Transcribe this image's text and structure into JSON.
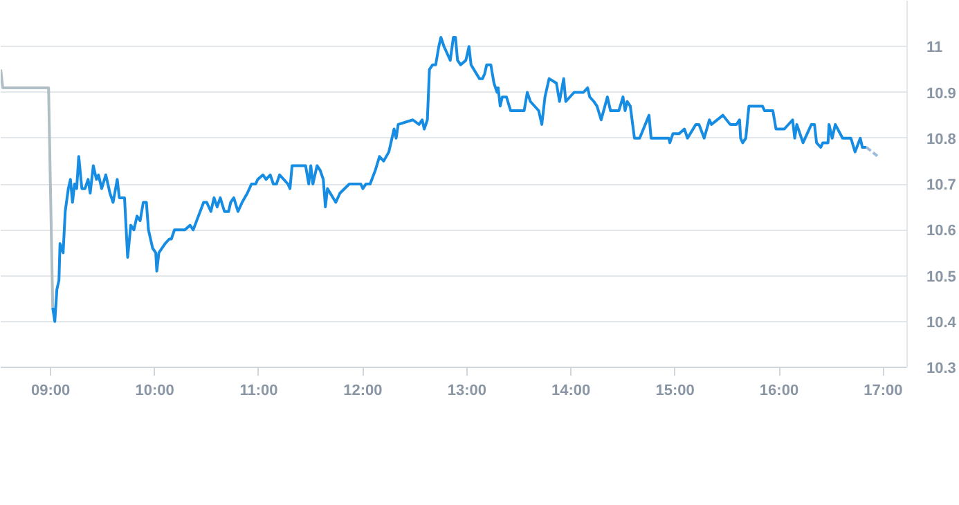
{
  "chart_data": {
    "type": "line",
    "xlim": [
      8.52,
      17.23
    ],
    "ylim": [
      10.3,
      11.1
    ],
    "xticks": [
      {
        "value": 9,
        "label": "09:00"
      },
      {
        "value": 10,
        "label": "10:00"
      },
      {
        "value": 11,
        "label": "11:00"
      },
      {
        "value": 12,
        "label": "12:00"
      },
      {
        "value": 13,
        "label": "13:00"
      },
      {
        "value": 14,
        "label": "14:00"
      },
      {
        "value": 15,
        "label": "15:00"
      },
      {
        "value": 16,
        "label": "16:00"
      },
      {
        "value": 17,
        "label": "17:00"
      }
    ],
    "yticks": [
      10.3,
      10.4,
      10.5,
      10.6,
      10.7,
      10.8,
      10.9,
      {
        "value": 11,
        "label": "11"
      }
    ],
    "grid": "y",
    "series": [
      {
        "color": "#b0bec5",
        "x": [
          8.52,
          8.54,
          8.98,
          9.02
        ],
        "values": [
          10.95,
          10.91,
          10.91,
          10.43
        ]
      },
      {
        "color": "#168de2",
        "x": [
          9.02,
          9.04,
          9.06,
          9.08,
          9.09,
          9.12,
          9.14,
          9.17,
          9.19,
          9.21,
          9.23,
          9.25,
          9.27,
          9.3,
          9.33,
          9.36,
          9.38,
          9.41,
          9.44,
          9.46,
          9.49,
          9.53,
          9.57,
          9.6,
          9.64,
          9.66,
          9.71,
          9.74,
          9.77,
          9.8,
          9.83,
          9.86,
          9.89,
          9.92,
          9.94,
          9.98,
          10.01,
          10.02,
          10.04,
          10.1,
          10.14,
          10.16,
          10.19,
          10.29,
          10.34,
          10.37,
          10.42,
          10.47,
          10.5,
          10.54,
          10.57,
          10.6,
          10.63,
          10.67,
          10.71,
          10.73,
          10.76,
          10.8,
          10.84,
          10.89,
          10.93,
          10.97,
          10.99,
          11.04,
          11.07,
          11.11,
          11.14,
          11.17,
          11.2,
          11.28,
          11.3,
          11.32,
          11.45,
          11.48,
          11.5,
          11.52,
          11.56,
          11.59,
          11.62,
          11.64,
          11.66,
          11.74,
          11.78,
          11.87,
          11.98,
          12.0,
          12.03,
          12.07,
          12.12,
          12.16,
          12.2,
          12.25,
          12.3,
          12.32,
          12.34,
          12.48,
          12.54,
          12.57,
          12.59,
          12.62,
          12.64,
          12.67,
          12.7,
          12.73,
          12.75,
          12.78,
          12.84,
          12.87,
          12.89,
          12.91,
          12.94,
          12.99,
          13.02,
          13.04,
          13.12,
          13.15,
          13.17,
          13.19,
          13.23,
          13.26,
          13.29,
          13.3,
          13.32,
          13.34,
          13.38,
          13.42,
          13.55,
          13.58,
          13.61,
          13.69,
          13.72,
          13.75,
          13.79,
          13.86,
          13.89,
          13.93,
          13.95,
          14.03,
          14.12,
          14.16,
          14.18,
          14.22,
          14.25,
          14.29,
          14.35,
          14.38,
          14.46,
          14.5,
          14.52,
          14.54,
          14.57,
          14.61,
          14.66,
          14.75,
          14.77,
          14.94,
          14.95,
          14.98,
          15.04,
          15.09,
          15.12,
          15.2,
          15.23,
          15.28,
          15.33,
          15.35,
          15.46,
          15.53,
          15.59,
          15.62,
          15.63,
          15.65,
          15.68,
          15.71,
          15.84,
          15.86,
          15.94,
          15.97,
          16.05,
          16.13,
          16.15,
          16.17,
          16.23,
          16.31,
          16.34,
          16.36,
          16.4,
          16.42,
          16.47,
          16.48,
          16.51,
          16.54,
          16.61,
          16.69,
          16.73,
          16.78,
          16.8,
          16.84
        ],
        "values": [
          10.43,
          10.4,
          10.47,
          10.49,
          10.57,
          10.55,
          10.64,
          10.69,
          10.71,
          10.66,
          10.7,
          10.69,
          10.76,
          10.69,
          10.69,
          10.71,
          10.68,
          10.74,
          10.71,
          10.72,
          10.69,
          10.72,
          10.68,
          10.66,
          10.71,
          10.67,
          10.67,
          10.54,
          10.61,
          10.6,
          10.63,
          10.62,
          10.66,
          10.66,
          10.6,
          10.56,
          10.55,
          10.51,
          10.55,
          10.57,
          10.58,
          10.58,
          10.6,
          10.6,
          10.61,
          10.6,
          10.63,
          10.66,
          10.66,
          10.64,
          10.67,
          10.65,
          10.67,
          10.64,
          10.64,
          10.66,
          10.67,
          10.64,
          10.66,
          10.68,
          10.7,
          10.7,
          10.71,
          10.72,
          10.71,
          10.72,
          10.7,
          10.7,
          10.72,
          10.7,
          10.69,
          10.74,
          10.74,
          10.7,
          10.74,
          10.7,
          10.74,
          10.73,
          10.71,
          10.65,
          10.69,
          10.66,
          10.68,
          10.7,
          10.7,
          10.69,
          10.7,
          10.7,
          10.73,
          10.76,
          10.75,
          10.77,
          10.82,
          10.8,
          10.83,
          10.84,
          10.83,
          10.84,
          10.82,
          10.84,
          10.95,
          10.96,
          10.96,
          11.0,
          11.02,
          11.0,
          10.97,
          11.02,
          11.02,
          10.97,
          10.96,
          10.97,
          11.0,
          10.96,
          10.93,
          10.93,
          10.94,
          10.96,
          10.96,
          10.92,
          10.9,
          10.91,
          10.87,
          10.89,
          10.89,
          10.86,
          10.86,
          10.9,
          10.88,
          10.86,
          10.83,
          10.89,
          10.93,
          10.92,
          10.88,
          10.93,
          10.88,
          10.9,
          10.9,
          10.91,
          10.89,
          10.88,
          10.87,
          10.84,
          10.89,
          10.86,
          10.86,
          10.89,
          10.86,
          10.88,
          10.87,
          10.8,
          10.8,
          10.85,
          10.8,
          10.8,
          10.79,
          10.81,
          10.81,
          10.82,
          10.8,
          10.83,
          10.83,
          10.8,
          10.84,
          10.83,
          10.85,
          10.83,
          10.83,
          10.84,
          10.8,
          10.79,
          10.8,
          10.87,
          10.87,
          10.86,
          10.86,
          10.82,
          10.82,
          10.84,
          10.8,
          10.83,
          10.79,
          10.83,
          10.83,
          10.79,
          10.78,
          10.79,
          10.79,
          10.83,
          10.8,
          10.83,
          10.8,
          10.8,
          10.77,
          10.8,
          10.78,
          10.78
        ]
      },
      {
        "color": "#9bbbd6",
        "line_style": "dashed",
        "x": [
          16.84,
          16.95
        ],
        "values": [
          10.78,
          10.76
        ]
      }
    ]
  }
}
